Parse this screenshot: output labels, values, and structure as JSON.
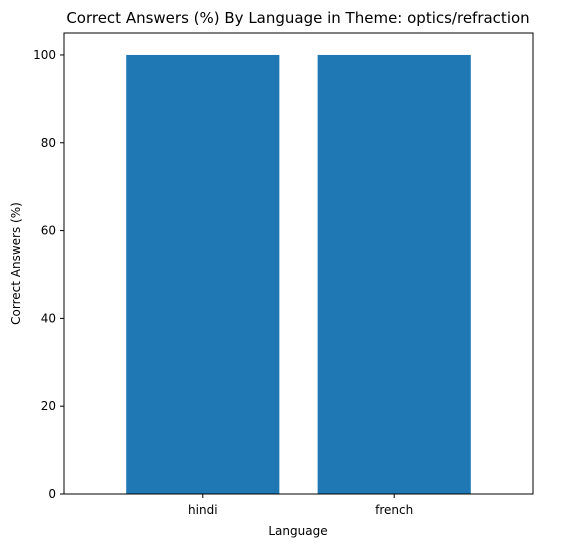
{
  "chart_data": {
    "type": "bar",
    "title": "Correct Answers (%) By Language in Theme: optics/refraction",
    "xlabel": "Language",
    "ylabel": "Correct Answers (%)",
    "categories": [
      "hindi",
      "french"
    ],
    "values": [
      100,
      100
    ],
    "ylim": [
      0,
      105
    ],
    "yticks": [
      0,
      20,
      40,
      60,
      80,
      100
    ],
    "grid": false,
    "legend": "none",
    "bar_color": "#1f77b4"
  }
}
